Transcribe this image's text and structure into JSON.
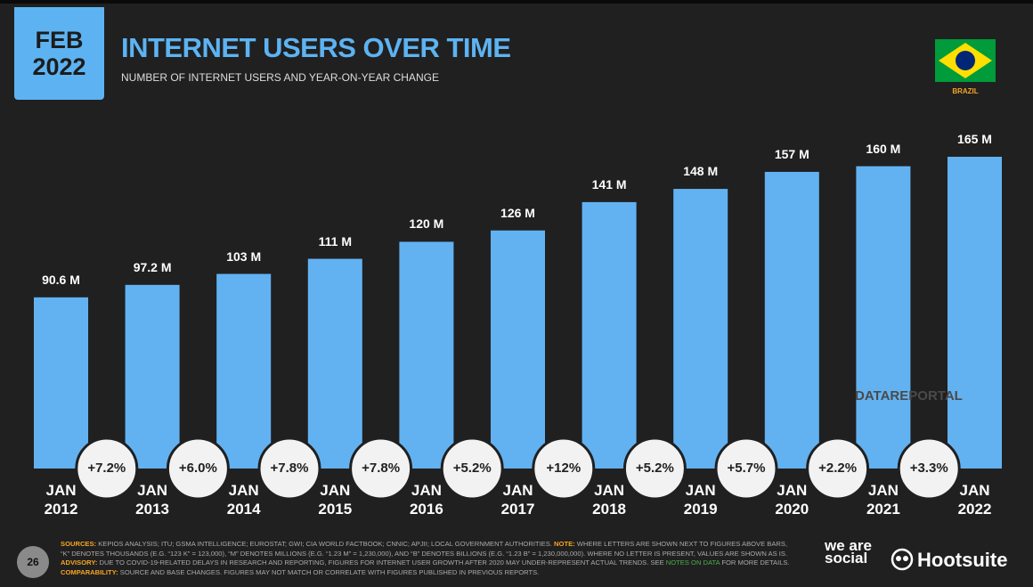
{
  "header": {
    "date": "FEB 2022",
    "country": "BRAZIL"
  },
  "chart_data": {
    "type": "bar",
    "title": "INTERNET USERS OVER TIME",
    "subtitle": "NUMBER OF INTERNET USERS AND YEAR-ON-YEAR CHANGE",
    "categories": [
      "JAN 2012",
      "JAN 2013",
      "JAN 2014",
      "JAN 2015",
      "JAN 2016",
      "JAN 2017",
      "JAN 2018",
      "JAN 2019",
      "JAN 2020",
      "JAN 2021",
      "JAN 2022"
    ],
    "values": [
      90.6,
      97.2,
      103,
      111,
      120,
      126,
      141,
      148,
      157,
      160,
      165
    ],
    "value_labels": [
      "90.6 M",
      "97.2 M",
      "103 M",
      "111 M",
      "120 M",
      "126 M",
      "141 M",
      "148 M",
      "157 M",
      "160 M",
      "165 M"
    ],
    "color": "#62b2f2",
    "changes": {
      "values": [
        7.2,
        6.0,
        7.8,
        7.8,
        5.2,
        12,
        5.2,
        5.7,
        2.2,
        3.3
      ],
      "value_labels": [
        "+7.2%",
        "+6.0%",
        "+7.8%",
        "+7.8%",
        "+5.2%",
        "+12%",
        "+5.2%",
        "+5.7%",
        "+2.2%",
        "+3.3%"
      ]
    }
  },
  "watermark": "DATAREPORTAL",
  "footer": {
    "page": "26",
    "parts": [
      "SOURCES:",
      " KEPIOS ANALYSIS; ITU; GSMA INTELLIGENCE; EUROSTAT; GWI; CIA WORLD FACTBOOK; CNNIC; APJII; LOCAL GOVERNMENT AUTHORITIES. ",
      "NOTE:",
      " WHERE LETTERS ARE SHOWN NEXT TO FIGURES ABOVE BARS, “K” DENOTES THOUSANDS (E.G. “123 K” = 123,000), “M” DENOTES MILLIONS (E.G. “1.23 M” = 1,230,000), AND “B” DENOTES BILLIONS (E.G. “1.23 B” = 1,230,000,000). WHERE NO LETTER IS PRESENT, VALUES ARE SHOWN AS IS. ",
      "ADVISORY:",
      " DUE TO COVID-19-RELATED DELAYS IN RESEARCH AND REPORTING, FIGURES FOR INTERNET USER GROWTH AFTER 2020 MAY UNDER-REPRESENT ACTUAL TRENDS. SEE ",
      "NOTES ON DATA",
      " FOR MORE DETAILS. ",
      "COMPARABILITY:",
      " SOURCE AND BASE CHANGES. FIGURES MAY NOT MATCH OR CORRELATE WITH FIGURES PUBLISHED IN PREVIOUS REPORTS."
    ],
    "logo1": "we are social",
    "logo2": "Hootsuite"
  }
}
